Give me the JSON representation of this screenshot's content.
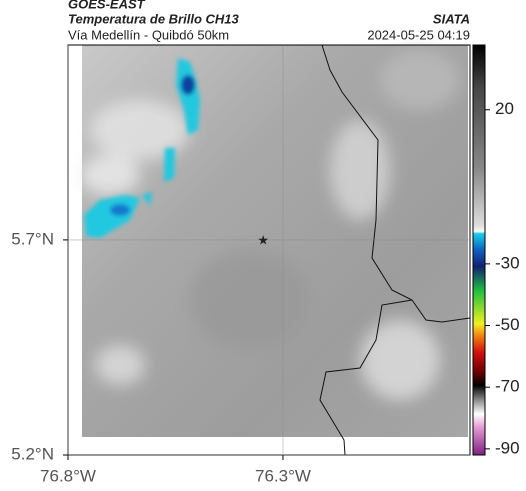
{
  "header": {
    "source": "GOES-EAST",
    "title": "Temperatura de Brillo CH13",
    "subtitle": "Vía Medellín - Quibdó 50km",
    "org": "SIATA",
    "datetime": "2024-05-25 04:19"
  },
  "map": {
    "xlim": [
      -76.8,
      -75.865
    ],
    "ylim": [
      5.2,
      6.153
    ],
    "xticks": [
      {
        "value": -76.8,
        "label": "76.8°W"
      },
      {
        "value": -76.3,
        "label": "76.3°W"
      }
    ],
    "yticks": [
      {
        "value": 5.2,
        "label": "5.2°N"
      },
      {
        "value": 5.7,
        "label": "5.7°N"
      }
    ],
    "marker": {
      "lon": -76.346,
      "lat": 5.7
    }
  },
  "colorbar": {
    "clim": [
      -92,
      41
    ],
    "ticks": [
      20,
      -30,
      -50,
      -70,
      -90
    ]
  }
}
